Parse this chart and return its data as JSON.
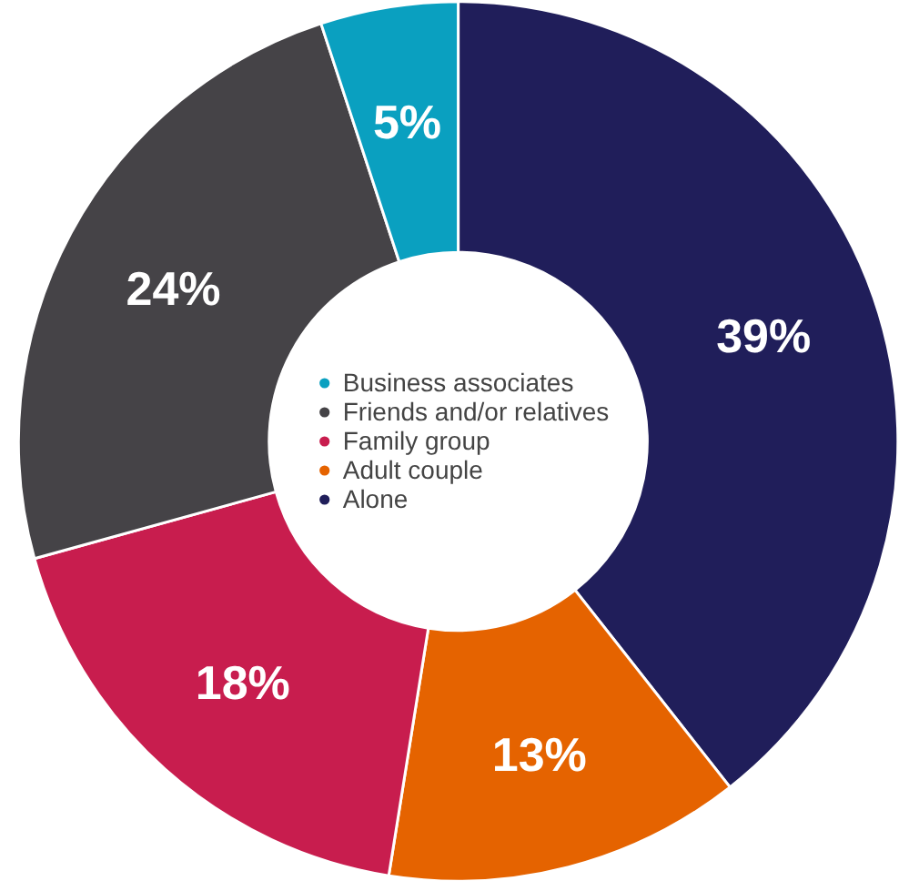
{
  "chart_data": {
    "type": "donut",
    "categories": [
      "Alone",
      "Adult couple",
      "Family group",
      "Friends and/or relatives",
      "Business associates"
    ],
    "values": [
      39,
      13,
      18,
      24,
      5
    ],
    "colors": [
      "#201e5a",
      "#e56300",
      "#c81d4e",
      "#454347",
      "#0aa0c0"
    ],
    "value_labels": [
      "39%",
      "13%",
      "18%",
      "24%",
      "5%"
    ],
    "legend": "center"
  }
}
